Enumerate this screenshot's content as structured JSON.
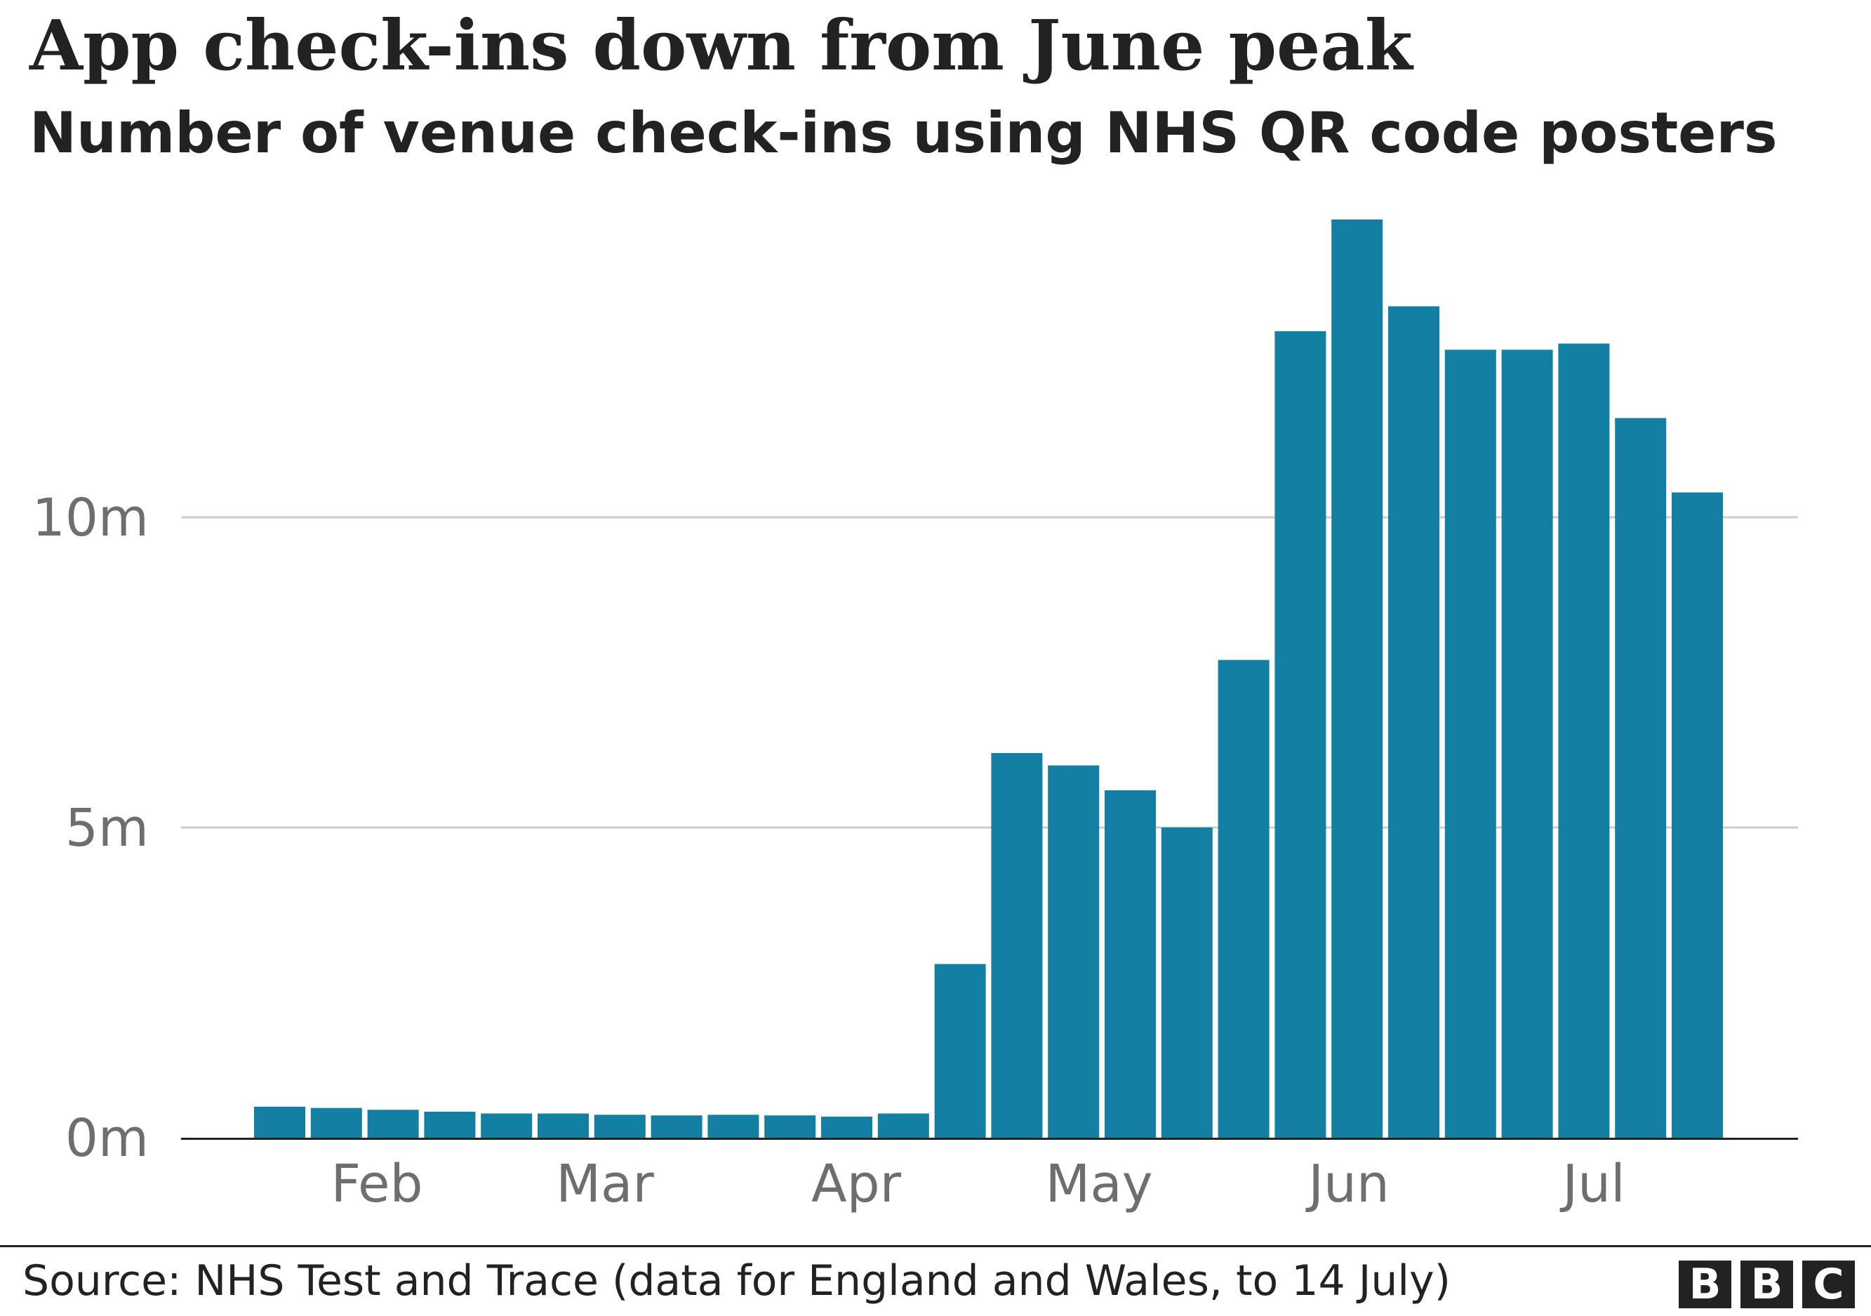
{
  "header": {
    "title": "App check-ins down from June peak",
    "subtitle": "Number of venue check-ins using NHS QR code posters"
  },
  "footer": {
    "source": "Source: NHS Test and Trace (data for England and Wales, to 14 July)",
    "logo_letters": [
      "B",
      "B",
      "C"
    ]
  },
  "colors": {
    "bar": "#137fa2",
    "gridline": "#cccccc",
    "axis": "#222222",
    "tick_text": "#6e6e6e",
    "title_text": "#222222"
  },
  "chart_data": {
    "type": "bar",
    "title": "App check-ins down from June peak",
    "subtitle": "Number of venue check-ins using NHS QR code posters",
    "xlabel": "",
    "ylabel": "",
    "x_tick_labels": [
      "Feb",
      "Mar",
      "Apr",
      "May",
      "Jun",
      "Jul"
    ],
    "y_ticks": [
      {
        "value": 0,
        "label": "0m"
      },
      {
        "value": 5000000,
        "label": "5m"
      },
      {
        "value": 10000000,
        "label": "10m"
      }
    ],
    "ylim": [
      0,
      15000000
    ],
    "grid": true,
    "legend": "none",
    "series": [
      {
        "values": [
          500000,
          480000,
          450000,
          420000,
          390000,
          390000,
          370000,
          360000,
          370000,
          360000,
          340000,
          390000,
          2800000,
          6200000,
          6000000,
          5600000,
          5000000,
          7700000,
          13000000,
          14800000,
          13400000,
          12700000,
          12700000,
          12800000,
          11600000,
          10400000
        ]
      }
    ]
  }
}
